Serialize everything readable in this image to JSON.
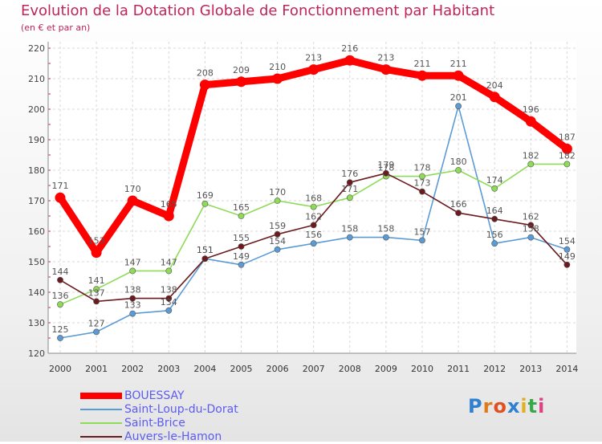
{
  "chart_data": {
    "type": "line",
    "title": "Evolution de la Dotation Globale de Fonctionnement par Habitant",
    "subtitle": "(en € et par an)",
    "xlabel": "",
    "ylabel": "",
    "x": [
      "2000",
      "2001",
      "2002",
      "2003",
      "2004",
      "2005",
      "2006",
      "2007",
      "2008",
      "2009",
      "2010",
      "2011",
      "2012",
      "2013",
      "2014"
    ],
    "ylim": [
      120,
      220
    ],
    "yticks": [
      120,
      130,
      140,
      150,
      160,
      170,
      180,
      190,
      200,
      210,
      220
    ],
    "grid": true,
    "series": [
      {
        "name": "BOUESSAY",
        "color": "#ff0000",
        "values": [
          171,
          153,
          170,
          165,
          208,
          209,
          210,
          213,
          216,
          213,
          211,
          211,
          204,
          196,
          187
        ]
      },
      {
        "name": "Saint-Loup-du-Dorat",
        "color": "#5b9bd5",
        "values": [
          125,
          127,
          133,
          134,
          151,
          149,
          154,
          156,
          158,
          158,
          157,
          201,
          156,
          158,
          154
        ]
      },
      {
        "name": "Saint-Brice",
        "color": "#8edb58",
        "values": [
          136,
          141,
          147,
          147,
          169,
          165,
          170,
          168,
          171,
          178,
          178,
          180,
          174,
          182,
          182
        ]
      },
      {
        "name": "Auvers-le-Hamon",
        "color": "#6b1a1f",
        "values": [
          144,
          137,
          138,
          138,
          151,
          155,
          159,
          162,
          176,
          179,
          173,
          166,
          164,
          162,
          149
        ]
      }
    ]
  },
  "legend": [
    {
      "label": "BOUESSAY",
      "color": "#ff0000"
    },
    {
      "label": "Saint-Loup-du-Dorat",
      "color": "#5b9bd5"
    },
    {
      "label": "Saint-Brice",
      "color": "#8edb58"
    },
    {
      "label": "Auvers-le-Hamon",
      "color": "#6b1a1f"
    }
  ],
  "logo": {
    "text": "Proxiti",
    "letters": [
      "P",
      "r",
      "o",
      "x",
      "i",
      "t",
      "i"
    ],
    "colors": [
      "#2f80d0",
      "#e07a1a",
      "#e05020",
      "#2f80d0",
      "#e0b020",
      "#3aa84a",
      "#e04080"
    ]
  }
}
